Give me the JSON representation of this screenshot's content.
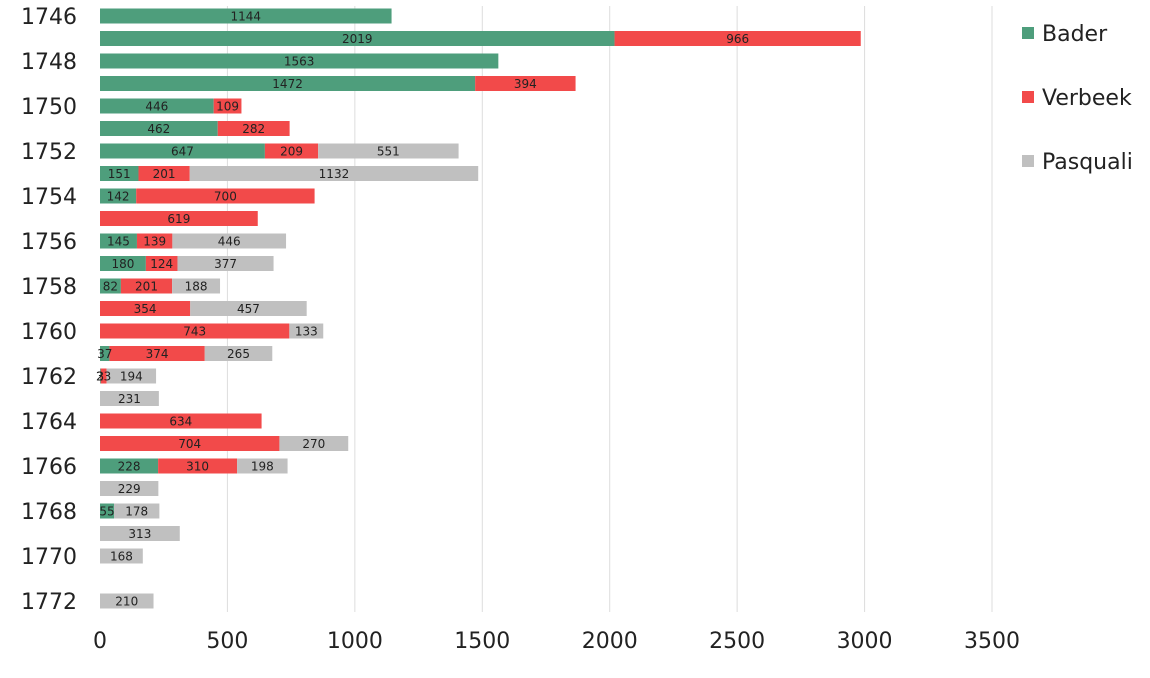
{
  "chart_data": {
    "type": "bar",
    "orientation": "horizontal",
    "stacked": true,
    "title": "",
    "xlabel": "",
    "ylabel": "",
    "xlim": [
      0,
      3500
    ],
    "x_ticks": [
      0,
      500,
      1000,
      1500,
      2000,
      2500,
      3000,
      3500
    ],
    "grid": "vertical",
    "legend_position": "right",
    "y_tick_labels": [
      "1746",
      "1748",
      "1750",
      "1752",
      "1754",
      "1756",
      "1758",
      "1760",
      "1762",
      "1764",
      "1766",
      "1768",
      "1770",
      "1772"
    ],
    "categories": [
      "1746",
      "1747",
      "1748",
      "1749",
      "1750",
      "1751",
      "1752",
      "1753",
      "1754",
      "1755",
      "1756",
      "1757",
      "1758",
      "1759",
      "1760",
      "1761",
      "1762",
      "1763",
      "1764",
      "1765",
      "1766",
      "1767",
      "1768",
      "1769",
      "1770",
      "1771",
      "1772"
    ],
    "series": [
      {
        "name": "Bader",
        "color": "#4e9e7c",
        "values": [
          1144,
          2019,
          1563,
          1472,
          446,
          462,
          647,
          151,
          142,
          null,
          145,
          180,
          82,
          null,
          null,
          37,
          3,
          null,
          null,
          null,
          228,
          null,
          55,
          null,
          null,
          null,
          null
        ]
      },
      {
        "name": "Verbeek",
        "color": "#f24a4a",
        "values": [
          null,
          966,
          null,
          394,
          109,
          282,
          209,
          201,
          700,
          619,
          139,
          124,
          201,
          354,
          743,
          374,
          23,
          null,
          634,
          704,
          310,
          null,
          null,
          null,
          null,
          null,
          null
        ]
      },
      {
        "name": "Pasquali",
        "color": "#c0c0c0",
        "values": [
          null,
          null,
          null,
          null,
          null,
          null,
          551,
          1132,
          null,
          null,
          446,
          377,
          188,
          457,
          133,
          265,
          194,
          231,
          null,
          270,
          198,
          229,
          178,
          313,
          168,
          null,
          210
        ]
      }
    ]
  }
}
